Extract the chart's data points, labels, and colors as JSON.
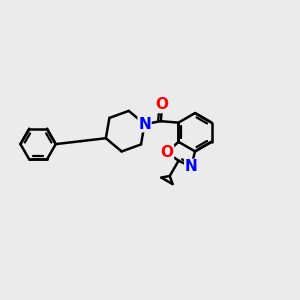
{
  "bg_color": "#ebebeb",
  "bond_color": "#000000",
  "bond_width": 1.8,
  "atom_colors": {
    "O": "#ff0000",
    "N": "#0000ff",
    "C": "#000000"
  },
  "font_size": 10,
  "fig_size": [
    3.0,
    3.0
  ],
  "dpi": 100
}
